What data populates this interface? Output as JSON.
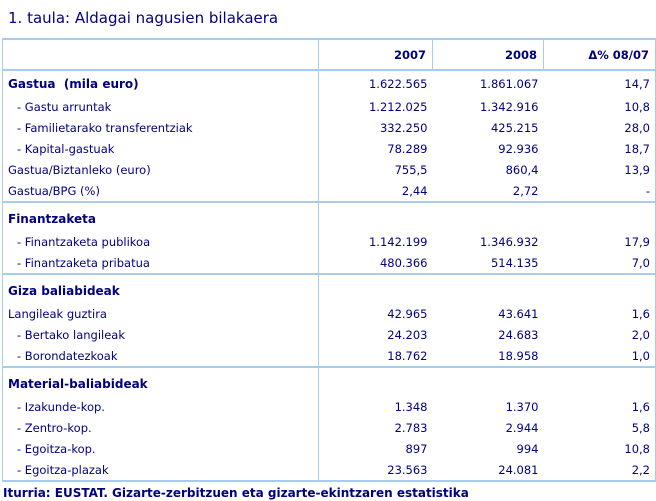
{
  "title": "1. taula: Aldagai nagusien bilakaera",
  "source": "Iturria: EUSTAT. Gizarte-zerbitzuen eta gizarte-ekintzaren estatistika",
  "colors": {
    "text": "#000080",
    "border": "#a6cdef"
  },
  "table": {
    "columns": {
      "year1": "2007",
      "year2": "2008",
      "delta": "Δ% 08/07"
    },
    "sections": [
      {
        "rows": [
          {
            "label": "Gastua  (mila euro)",
            "v2007": "1.622.565",
            "v2008": "1.861.067",
            "delta": "14,7"
          },
          {
            "label": "- Gastu arruntak",
            "v2007": "1.212.025",
            "v2008": "1.342.916",
            "delta": "10,8"
          },
          {
            "label": "- Familietarako transferentziak",
            "v2007": "332.250",
            "v2008": "425.215",
            "delta": "28,0"
          },
          {
            "label": "- Kapital-gastuak",
            "v2007": "78.289",
            "v2008": "92.936",
            "delta": "18,7"
          },
          {
            "label": "Gastua/Biztanleko (euro)",
            "v2007": "755,5",
            "v2008": "860,4",
            "delta": "13,9"
          },
          {
            "label": "Gastua/BPG (%)",
            "v2007": "2,44",
            "v2008": "2,72",
            "delta": "-"
          }
        ]
      },
      {
        "rows": [
          {
            "label": "Finantzaketa",
            "v2007": "",
            "v2008": "",
            "delta": ""
          },
          {
            "label": "- Finantzaketa publikoa",
            "v2007": "1.142.199",
            "v2008": "1.346.932",
            "delta": "17,9"
          },
          {
            "label": "- Finantzaketa pribatua",
            "v2007": "480.366",
            "v2008": "514.135",
            "delta": "7,0"
          }
        ]
      },
      {
        "rows": [
          {
            "label": "Giza baliabideak",
            "v2007": "",
            "v2008": "",
            "delta": ""
          },
          {
            "label": "Langileak guztira",
            "v2007": "42.965",
            "v2008": "43.641",
            "delta": "1,6"
          },
          {
            "label": "- Bertako langileak",
            "v2007": "24.203",
            "v2008": "24.683",
            "delta": "2,0"
          },
          {
            "label": "- Borondatezkoak",
            "v2007": "18.762",
            "v2008": "18.958",
            "delta": "1,0"
          }
        ]
      },
      {
        "rows": [
          {
            "label": "Material-baliabideak",
            "v2007": "",
            "v2008": "",
            "delta": ""
          },
          {
            "label": "- Izakunde-kop.",
            "v2007": "1.348",
            "v2008": "1.370",
            "delta": "1,6"
          },
          {
            "label": "- Zentro-kop.",
            "v2007": "2.783",
            "v2008": "2.944",
            "delta": "5,8"
          },
          {
            "label": "- Egoitza-kop.",
            "v2007": "897",
            "v2008": "994",
            "delta": "10,8"
          },
          {
            "label": "- Egoitza-plazak",
            "v2007": "23.563",
            "v2008": "24.081",
            "delta": "2,2"
          }
        ]
      }
    ]
  }
}
